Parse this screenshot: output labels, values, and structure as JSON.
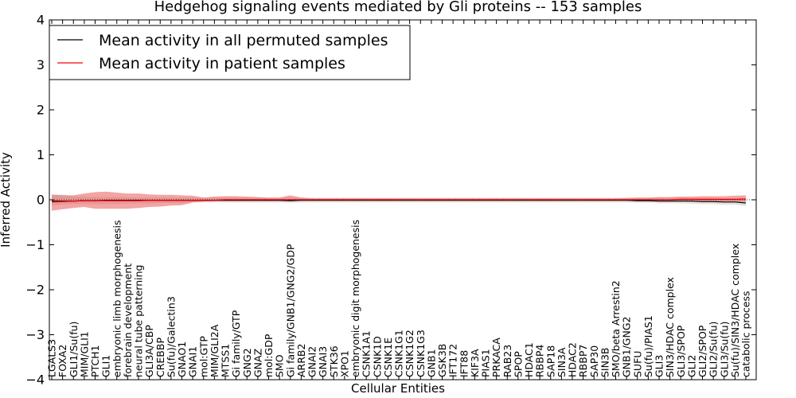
{
  "chart_data": {
    "type": "line",
    "title": "Hedgehog signaling events mediated by Gli proteins -- 153 samples",
    "xlabel": "Cellular Entities",
    "ylabel": "Inferred Activity",
    "ylim": [
      -4,
      4
    ],
    "yticks": [
      -4,
      -3,
      -2,
      -1,
      0,
      1,
      2,
      3,
      4
    ],
    "ytick_labels": [
      "−4",
      "−3",
      "−2",
      "−1",
      "0",
      "1",
      "2",
      "3",
      "4"
    ],
    "legend": {
      "location": "top-left",
      "entries": [
        {
          "label": "Mean activity in all permuted samples",
          "color": "#000000"
        },
        {
          "label": "Mean activity in patient samples",
          "color": "#ff0000"
        }
      ]
    },
    "categories": [
      "LGALS3",
      "FOXA2",
      "GLI1/Su(fu)",
      "MIM/GLI1",
      "PTCH1",
      "GLI1",
      "embryonic limb morphogenesis",
      "forebrain development",
      "neural tube patterning",
      "GLI3A/CBP",
      "CREBBP",
      "Su(fu)/Galectin3",
      "GNAO1",
      "GNAI1",
      "mol:GTP",
      "MIM/GLI2A",
      "MTSS1",
      "Gi family/GTP",
      "GNG2",
      "GNAZ",
      "mol:GDP",
      "SMO",
      "Gi family/GNB1/GNG2/GDP",
      "ARRB2",
      "GNAI2",
      "GNAI3",
      "STK36",
      "XPO1",
      "embryonic digit morphogenesis",
      "CSNK1A1",
      "CSNK1D",
      "CSNK1E",
      "CSNK1G1",
      "CSNK1G2",
      "CSNK1G3",
      "GNB1",
      "GSK3B",
      "IFT172",
      "IFT88",
      "KIF3A",
      "PIAS1",
      "PRKACA",
      "RAB23",
      "SPOP",
      "HDAC1",
      "RBBP4",
      "SAP18",
      "SIN3A",
      "HDAC2",
      "RBBP7",
      "SAP30",
      "SIN3B",
      "SMO/beta Arrestin2",
      "GNB1/GNG2",
      "SUFU",
      "Su(fu)/PIAS1",
      "GLI3",
      "SIN3/HDAC complex",
      "GLI3/SPOP",
      "GLI2",
      "GLI2/SPOP",
      "GLI2/Su(fu)",
      "GLI3/Su(fu)",
      "Su(fu)/SIN3/HDAC complex",
      "catabolic process"
    ],
    "series": [
      {
        "name": "Mean activity in all permuted samples",
        "color": "#000000",
        "values": [
          -0.03,
          -0.03,
          -0.03,
          -0.02,
          -0.02,
          -0.01,
          -0.01,
          -0.01,
          -0.01,
          -0.01,
          -0.01,
          -0.01,
          -0.01,
          -0.01,
          -0.01,
          -0.01,
          -0.01,
          -0.01,
          -0.01,
          -0.01,
          -0.01,
          -0.01,
          -0.02,
          -0.01,
          -0.01,
          -0.01,
          -0.01,
          -0.01,
          -0.01,
          -0.01,
          -0.01,
          -0.01,
          -0.01,
          -0.01,
          -0.01,
          -0.01,
          -0.01,
          -0.01,
          -0.01,
          -0.01,
          -0.01,
          -0.01,
          -0.01,
          -0.01,
          -0.01,
          -0.01,
          -0.01,
          -0.01,
          -0.01,
          -0.01,
          -0.01,
          -0.01,
          -0.01,
          -0.01,
          -0.02,
          -0.02,
          -0.03,
          -0.03,
          -0.03,
          -0.03,
          -0.04,
          -0.04,
          -0.05,
          -0.05,
          -0.07
        ],
        "band_lower": [
          -0.13,
          -0.1,
          -0.09,
          -0.09,
          -0.1,
          -0.09,
          -0.09,
          -0.08,
          -0.08,
          -0.08,
          -0.07,
          -0.07,
          -0.07,
          -0.06,
          -0.06,
          -0.06,
          -0.06,
          -0.06,
          -0.06,
          -0.06,
          -0.06,
          -0.06,
          -0.07,
          -0.06,
          -0.06,
          -0.06,
          -0.06,
          -0.06,
          -0.06,
          -0.06,
          -0.06,
          -0.06,
          -0.06,
          -0.06,
          -0.06,
          -0.06,
          -0.06,
          -0.06,
          -0.06,
          -0.06,
          -0.06,
          -0.06,
          -0.06,
          -0.06,
          -0.06,
          -0.06,
          -0.06,
          -0.06,
          -0.06,
          -0.06,
          -0.06,
          -0.06,
          -0.06,
          -0.06,
          -0.07,
          -0.07,
          -0.08,
          -0.08,
          -0.08,
          -0.09,
          -0.1,
          -0.1,
          -0.11,
          -0.11,
          -0.14
        ],
        "band_upper": [
          0.1,
          0.12,
          0.08,
          0.07,
          0.06,
          0.06,
          0.06,
          0.06,
          0.05,
          0.05,
          0.05,
          0.05,
          0.05,
          0.05,
          0.05,
          0.05,
          0.05,
          0.05,
          0.05,
          0.05,
          0.05,
          0.05,
          0.05,
          0.05,
          0.05,
          0.05,
          0.05,
          0.05,
          0.05,
          0.05,
          0.05,
          0.05,
          0.05,
          0.05,
          0.05,
          0.05,
          0.05,
          0.05,
          0.05,
          0.05,
          0.05,
          0.05,
          0.05,
          0.05,
          0.05,
          0.05,
          0.05,
          0.05,
          0.05,
          0.05,
          0.05,
          0.05,
          0.05,
          0.05,
          0.05,
          0.05,
          0.05,
          0.05,
          0.05,
          0.04,
          0.04,
          0.04,
          0.03,
          0.03,
          0.0
        ]
      },
      {
        "name": "Mean activity in patient samples",
        "color": "#ff0000",
        "values": [
          -0.05,
          -0.04,
          -0.03,
          -0.02,
          -0.02,
          -0.02,
          -0.02,
          -0.02,
          -0.02,
          -0.01,
          -0.01,
          -0.01,
          -0.01,
          -0.01,
          -0.01,
          -0.01,
          0.0,
          0.0,
          0.0,
          0.0,
          0.0,
          0.0,
          0.0,
          0.0,
          0.0,
          0.0,
          0.0,
          0.0,
          0.0,
          0.0,
          0.0,
          0.0,
          0.0,
          0.0,
          0.0,
          0.0,
          0.0,
          0.0,
          0.0,
          0.0,
          0.0,
          0.0,
          0.0,
          0.0,
          0.0,
          0.0,
          0.0,
          0.0,
          0.0,
          0.0,
          0.0,
          0.0,
          0.0,
          0.0,
          0.0,
          0.0,
          0.0,
          0.0,
          0.01,
          0.01,
          0.01,
          0.01,
          0.01,
          0.01,
          0.02
        ],
        "band_lower": [
          -0.24,
          -0.21,
          -0.18,
          -0.16,
          -0.2,
          -0.2,
          -0.2,
          -0.2,
          -0.18,
          -0.16,
          -0.15,
          -0.13,
          -0.12,
          -0.06,
          -0.04,
          -0.03,
          -0.03,
          -0.03,
          -0.03,
          -0.03,
          -0.03,
          -0.03,
          -0.03,
          -0.02,
          -0.02,
          -0.02,
          -0.02,
          -0.02,
          -0.02,
          -0.02,
          -0.02,
          -0.02,
          -0.02,
          -0.02,
          -0.02,
          -0.02,
          -0.02,
          -0.02,
          -0.02,
          -0.02,
          -0.02,
          -0.02,
          -0.02,
          -0.02,
          -0.02,
          -0.02,
          -0.02,
          -0.02,
          -0.02,
          -0.02,
          -0.02,
          -0.02,
          -0.02,
          -0.02,
          -0.03,
          -0.03,
          -0.03,
          -0.03,
          -0.03,
          -0.04,
          -0.04,
          -0.04,
          -0.04,
          -0.04,
          -0.05
        ],
        "band_upper": [
          0.12,
          0.1,
          0.1,
          0.14,
          0.17,
          0.18,
          0.16,
          0.14,
          0.14,
          0.12,
          0.11,
          0.11,
          0.1,
          0.09,
          0.05,
          0.07,
          0.08,
          0.08,
          0.07,
          0.06,
          0.05,
          0.05,
          0.1,
          0.05,
          0.03,
          0.03,
          0.03,
          0.03,
          0.03,
          0.03,
          0.03,
          0.03,
          0.03,
          0.03,
          0.03,
          0.03,
          0.03,
          0.03,
          0.03,
          0.03,
          0.03,
          0.03,
          0.03,
          0.03,
          0.03,
          0.03,
          0.03,
          0.03,
          0.03,
          0.03,
          0.03,
          0.03,
          0.03,
          0.04,
          0.05,
          0.05,
          0.06,
          0.06,
          0.07,
          0.07,
          0.08,
          0.08,
          0.08,
          0.09,
          0.1
        ]
      }
    ]
  }
}
